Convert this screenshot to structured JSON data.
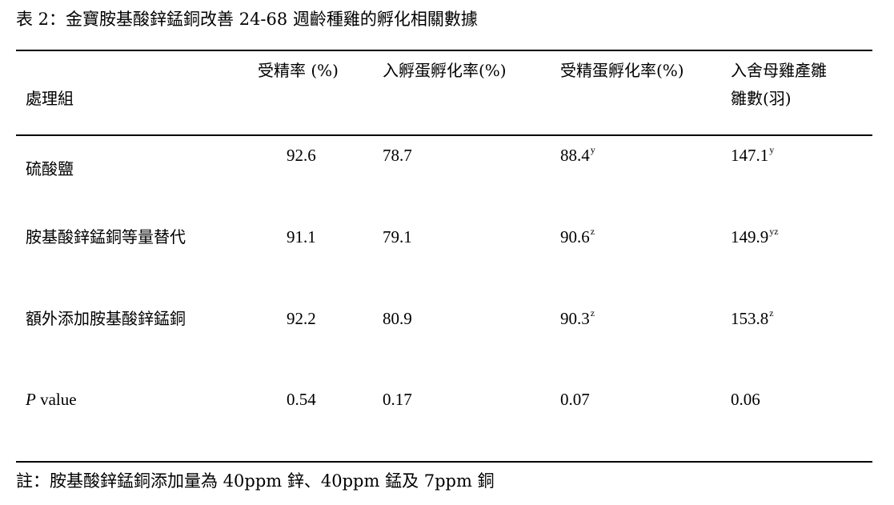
{
  "caption": "表 2：金寶胺基酸鋅錳銅改善 24-68 週齡種雞的孵化相關數據",
  "table": {
    "headers": {
      "group": "處理組",
      "fertility": "受精率 (%)",
      "hatch_set": "入孵蛋孵化率(%)",
      "hatch_fertile": "受精蛋孵化率(%)",
      "chicks_line1": "入舍母雞產雛",
      "chicks_line2": "雛數(羽)"
    },
    "rows": [
      {
        "group": "硫酸鹽",
        "fertility": "92.6",
        "hatch_set": "78.7",
        "hatch_fertile": "88.4",
        "hatch_fertile_sup": "y",
        "chicks": "147.1",
        "chicks_sup": "y"
      },
      {
        "group": "胺基酸鋅錳銅等量替代",
        "fertility": "91.1",
        "hatch_set": "79.1",
        "hatch_fertile": "90.6",
        "hatch_fertile_sup": "z",
        "chicks": "149.9",
        "chicks_sup": "yz"
      },
      {
        "group": "額外添加胺基酸鋅錳銅",
        "fertility": "92.2",
        "hatch_set": "80.9",
        "hatch_fertile": "90.3",
        "hatch_fertile_sup": "z",
        "chicks": "153.8",
        "chicks_sup": "z"
      }
    ],
    "pvalue_row": {
      "label_italic": "P",
      "label_rest": " value",
      "fertility": "0.54",
      "hatch_set": "0.17",
      "hatch_fertile": "0.07",
      "chicks": "0.06"
    }
  },
  "note": "註：胺基酸鋅錳銅添加量為 40ppm 鋅、40ppm 錳及 7ppm 銅"
}
